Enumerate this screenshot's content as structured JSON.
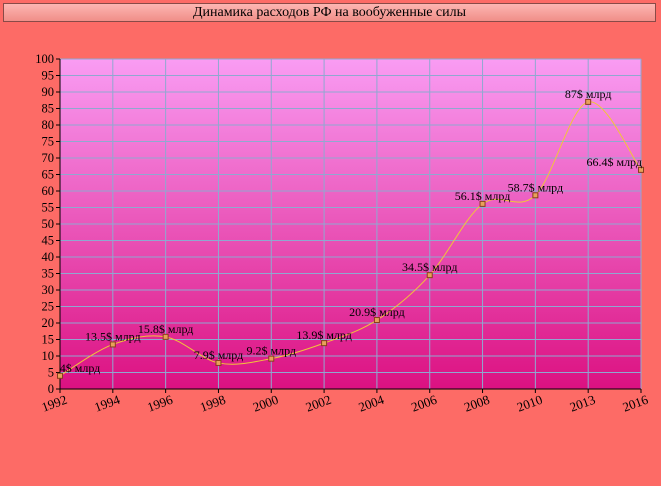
{
  "chart_data": {
    "type": "line",
    "title": "Динамика расходов РФ на вообуженные силы",
    "xlabel": "",
    "ylabel": "",
    "ylim": [
      0,
      100
    ],
    "y_ticks": [
      "0",
      "5",
      "10",
      "15",
      "20",
      "25",
      "30",
      "35",
      "40",
      "45",
      "50",
      "55",
      "60",
      "65",
      "70",
      "75",
      "80",
      "85",
      "90",
      "95",
      "100"
    ],
    "categories": [
      "1992",
      "1994",
      "1996",
      "1998",
      "2000",
      "2002",
      "2004",
      "2006",
      "2008",
      "2010",
      "2013",
      "2016"
    ],
    "series": [
      {
        "values": [
          4,
          13.5,
          15.8,
          7.9,
          9.2,
          13.9,
          20.9,
          34.5,
          56.1,
          58.7,
          87,
          66.4
        ],
        "labels": [
          "4$ млрд",
          "13.5$ млрд",
          "15.8$ млрд",
          "7.9$ млрд",
          "9.2$ млрд",
          "13.9$ млрд",
          "20.9$ млрд",
          "34.5$ млрд",
          "56.1$ млрд",
          "58.7$ млрд",
          "87$ млрд",
          "66.4$ млрд"
        ]
      }
    ],
    "grid": true,
    "colors": {
      "background": "#fd6b66",
      "plot_top": "#f99cf3",
      "plot_bottom": "#dc1181",
      "grid": "#8fa8d0",
      "line": "#f2c43a",
      "marker_fill": "#e8a15a",
      "marker_stroke": "#8a3c1c"
    }
  }
}
